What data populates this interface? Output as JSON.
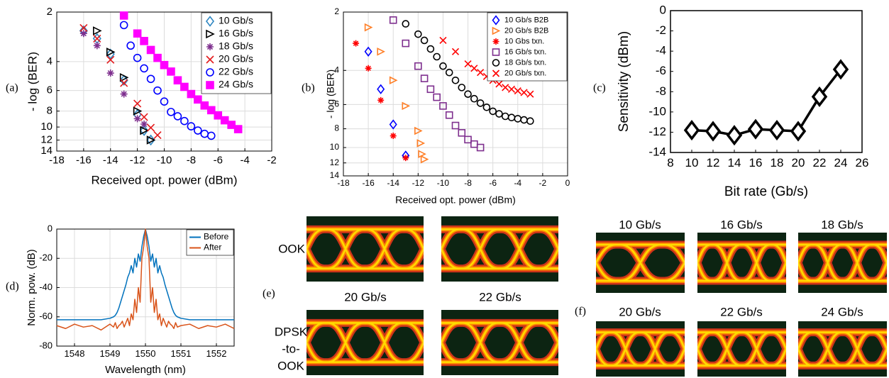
{
  "chart_data": [
    {
      "type": "scatter",
      "label": "(a)",
      "xlabel": "Received opt. power (dBm)",
      "ylabel": "- log (BER)",
      "xlim": [
        -18,
        -2
      ],
      "xticks": [
        -18,
        -16,
        -14,
        -12,
        -10,
        -8,
        -6,
        -4,
        -2
      ],
      "ylim": [
        14,
        2
      ],
      "yscale": "log",
      "yticks": [
        2,
        4,
        6,
        8,
        10,
        12,
        14
      ],
      "grid": true,
      "legend": "top-right",
      "series": [
        {
          "name": "10 Gb/s",
          "color": "#2e86c1",
          "marker": "diamond",
          "x": [
            -16,
            -15,
            -14,
            -13,
            -12,
            -11.5,
            -11
          ],
          "values": [
            2.6,
            2.9,
            3.6,
            5.2,
            8.4,
            10.5,
            12
          ]
        },
        {
          "name": "16 Gb/s",
          "color": "#000000",
          "marker": "triangle-right",
          "x": [
            -15,
            -14,
            -13,
            -12,
            -11.5,
            -11
          ],
          "values": [
            2.6,
            3.5,
            5,
            8,
            10.5,
            12
          ]
        },
        {
          "name": "18 Gb/s",
          "color": "#7e2f8e",
          "marker": "asterisk",
          "x": [
            -16,
            -15,
            -14,
            -13,
            -12,
            -11.5
          ],
          "values": [
            2.7,
            3.2,
            4.7,
            6.3,
            8.9,
            9.6
          ]
        },
        {
          "name": "20 Gb/s",
          "color": "#e31a1c",
          "marker": "x",
          "x": [
            -16,
            -15,
            -14,
            -13,
            -12,
            -11.5,
            -11,
            -10.5
          ],
          "values": [
            2.5,
            2.9,
            3.9,
            5.4,
            7.2,
            8.7,
            10.1,
            11.2
          ]
        },
        {
          "name": "22 Gb/s",
          "color": "#0000ff",
          "marker": "circle",
          "x": [
            -13,
            -12.5,
            -12,
            -11.5,
            -11,
            -10.5,
            -10,
            -9.5,
            -9,
            -8.5,
            -8,
            -7.5,
            -7,
            -6.5
          ],
          "values": [
            2.4,
            3.2,
            3.8,
            4.4,
            5.1,
            6,
            7,
            8.1,
            8.6,
            9.2,
            9.9,
            10.5,
            11,
            11.3
          ]
        },
        {
          "name": "24 Gb/s",
          "color": "#ff00ff",
          "marker": "square-filled",
          "x": [
            -13,
            -12,
            -11.5,
            -11,
            -10.5,
            -10,
            -9.5,
            -9,
            -8.5,
            -8,
            -7.5,
            -7,
            -6.5,
            -6,
            -5.5,
            -5,
            -4.5
          ],
          "values": [
            2.1,
            2.7,
            3.0,
            3.4,
            3.8,
            4.2,
            4.6,
            5.2,
            5.7,
            6.3,
            6.8,
            7.4,
            7.9,
            8.5,
            9.1,
            9.7,
            10.3
          ]
        }
      ]
    },
    {
      "type": "scatter",
      "label": "(b)",
      "xlabel": "Received opt. power (dBm)",
      "ylabel": "- log (BER)",
      "xlim": [
        -18,
        0
      ],
      "xticks": [
        -18,
        -16,
        -14,
        -12,
        -10,
        -8,
        -6,
        -4,
        -2,
        0
      ],
      "ylim": [
        14,
        2
      ],
      "yscale": "log",
      "yticks": [
        2,
        4,
        6,
        8,
        10,
        12,
        14
      ],
      "grid": true,
      "legend": "top-right",
      "series": [
        {
          "name": "10 Gb/s B2B",
          "color": "#0000ff",
          "marker": "diamond",
          "x": [
            -16,
            -15,
            -14,
            -13
          ],
          "values": [
            3.2,
            5,
            7.6,
            11
          ]
        },
        {
          "name": "20 Gb/s B2B",
          "color": "#ff7f27",
          "marker": "triangle-right",
          "x": [
            -16,
            -15,
            -14,
            -13,
            -12,
            -11.8,
            -11.7,
            -11.5
          ],
          "values": [
            2.4,
            3.2,
            4.5,
            6.1,
            8.2,
            9.5,
            10.8,
            11.5
          ]
        },
        {
          "name": "10 Gbs txn.",
          "color": "#ff0000",
          "marker": "asterisk",
          "x": [
            -17,
            -16,
            -15,
            -14,
            -13
          ],
          "values": [
            2.9,
            3.9,
            5.7,
            8.7,
            11.3
          ]
        },
        {
          "name": "16 Gb/s txn.",
          "color": "#7e2f8e",
          "marker": "square",
          "x": [
            -14,
            -13,
            -12,
            -11.5,
            -11,
            -10.5,
            -10,
            -9.5,
            -9,
            -8.5,
            -8,
            -7.5,
            -7
          ],
          "values": [
            2.2,
            2.9,
            3.8,
            4.4,
            5,
            5.5,
            6.1,
            6.8,
            7.7,
            8.4,
            9.1,
            9.6,
            10
          ]
        },
        {
          "name": "18 Gb/s txn.",
          "color": "#000000",
          "marker": "circle",
          "x": [
            -13,
            -12,
            -11.5,
            -11,
            -10.5,
            -10,
            -9.5,
            -9,
            -8.5,
            -8,
            -7.5,
            -7,
            -6.5,
            -6,
            -5.5,
            -5,
            -4.5,
            -4,
            -3.5,
            -3
          ],
          "values": [
            2.3,
            2.6,
            2.8,
            3.1,
            3.4,
            3.8,
            4.1,
            4.5,
            4.9,
            5.3,
            5.6,
            5.9,
            6.2,
            6.5,
            6.7,
            6.9,
            7.0,
            7.1,
            7.2,
            7.3
          ]
        },
        {
          "name": "20 Gb/s txn.",
          "color": "#ff0000",
          "marker": "x",
          "x": [
            -10,
            -9,
            -8,
            -7.5,
            -7,
            -6.5,
            -6,
            -5.5,
            -5,
            -4.5,
            -4,
            -3.5,
            -3
          ],
          "values": [
            2.8,
            3.2,
            3.7,
            3.9,
            4.1,
            4.3,
            4.5,
            4.7,
            4.9,
            5.0,
            5.1,
            5.2,
            5.3
          ]
        }
      ]
    },
    {
      "type": "line",
      "label": "(c)",
      "xlabel": "Bit rate (Gb/s)",
      "ylabel": "Sensitivity (dBm)",
      "xlim": [
        8,
        26
      ],
      "xticks": [
        8,
        10,
        12,
        14,
        16,
        18,
        20,
        22,
        24,
        26
      ],
      "ylim": [
        -14,
        0
      ],
      "yticks": [
        -14,
        -12,
        -10,
        -8,
        -6,
        -4,
        -2,
        0
      ],
      "grid": false,
      "color": "#000000",
      "marker": "diamond",
      "x": [
        10,
        12,
        14,
        16,
        18,
        20,
        22,
        24
      ],
      "values": [
        -11.8,
        -11.9,
        -12.3,
        -11.7,
        -11.8,
        -11.9,
        -8.5,
        -5.8
      ]
    },
    {
      "type": "line",
      "label": "(d)",
      "xlabel": "Wavelength (nm)",
      "ylabel": "Norm. pow. (dB)",
      "xlim": [
        1547.5,
        1552.5
      ],
      "xticks": [
        1548,
        1549,
        1550,
        1551,
        1552
      ],
      "ylim": [
        -80,
        0
      ],
      "yticks": [
        -80,
        -60,
        -40,
        -20,
        0
      ],
      "grid": true,
      "legend": "top-right",
      "x": [
        1547.5,
        1547.75,
        1548,
        1548.25,
        1548.5,
        1548.75,
        1549,
        1549.1,
        1549.15,
        1549.2,
        1549.25,
        1549.3,
        1549.35,
        1549.4,
        1549.45,
        1549.5,
        1549.55,
        1549.6,
        1549.65,
        1549.7,
        1549.75,
        1549.8,
        1549.85,
        1549.9,
        1549.95,
        1550,
        1550.05,
        1550.1,
        1550.15,
        1550.2,
        1550.25,
        1550.3,
        1550.35,
        1550.4,
        1550.45,
        1550.5,
        1550.55,
        1550.6,
        1550.65,
        1550.7,
        1550.75,
        1550.8,
        1550.85,
        1550.9,
        1551,
        1551.25,
        1551.5,
        1551.75,
        1552,
        1552.25,
        1552.5
      ],
      "series": [
        {
          "name": "Before",
          "color": "#0072bd",
          "values": [
            -62,
            -62,
            -62,
            -62,
            -62,
            -62,
            -61,
            -60,
            -59,
            -57,
            -54,
            -50,
            -46,
            -42,
            -38,
            -33,
            -30,
            -25,
            -30,
            -20,
            -26,
            -17,
            -22,
            -12,
            -5,
            0,
            -5,
            -12,
            -22,
            -17,
            -26,
            -20,
            -30,
            -25,
            -30,
            -33,
            -38,
            -42,
            -46,
            -50,
            -54,
            -57,
            -59,
            -60,
            -61,
            -62,
            -62,
            -62,
            -62,
            -62,
            -62
          ]
        },
        {
          "name": "After",
          "color": "#d95319",
          "values": [
            -66,
            -68,
            -65,
            -67,
            -66,
            -69,
            -65,
            -67,
            -64,
            -68,
            -66,
            -65,
            -63,
            -67,
            -64,
            -61,
            -66,
            -58,
            -62,
            -48,
            -57,
            -40,
            -50,
            -20,
            -12,
            0,
            -12,
            -20,
            -50,
            -40,
            -57,
            -48,
            -62,
            -58,
            -66,
            -61,
            -64,
            -67,
            -63,
            -65,
            -66,
            -68,
            -64,
            -67,
            -66,
            -65,
            -68,
            -66,
            -67,
            -65,
            -68
          ]
        }
      ]
    }
  ],
  "eyes": {
    "e": {
      "label": "(e)",
      "row_labels": [
        [
          "OOK"
        ],
        [
          "DPSK",
          "-to-",
          "OOK"
        ]
      ],
      "titles": [
        "20 Gb/s",
        "22 Gb/s"
      ]
    },
    "f": {
      "label": "(f)",
      "titles": [
        "10 Gb/s",
        "16 Gb/s",
        "18 Gb/s",
        "20 Gb/s",
        "22 Gb/s",
        "24 Gb/s"
      ]
    }
  }
}
